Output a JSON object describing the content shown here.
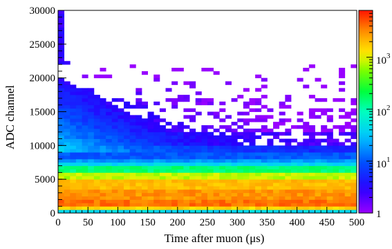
{
  "chart_data": {
    "type": "heatmap",
    "title": "",
    "xlabel": "Time after muon (μs)",
    "ylabel": "ADC channel",
    "xlim": [
      0,
      500
    ],
    "ylim": [
      0,
      30000
    ],
    "x_ticks": [
      "0",
      "50",
      "100",
      "150",
      "200",
      "250",
      "300",
      "350",
      "400",
      "450",
      "500"
    ],
    "y_ticks": [
      "0",
      "5000",
      "10000",
      "15000",
      "20000",
      "25000",
      "30000"
    ],
    "bin_width_x": 10,
    "bin_width_y": 500,
    "z_scale": "log",
    "z_range": [
      1,
      8000
    ],
    "colorbar": {
      "placement": "right",
      "labels": [
        {
          "base": "1",
          "exp": "",
          "value": 1
        },
        {
          "base": "10",
          "exp": "1",
          "value": 10
        },
        {
          "base": "10",
          "exp": "2",
          "value": 100
        },
        {
          "base": "10",
          "exp": "3",
          "value": 1000
        }
      ]
    },
    "intensity_profile_by_adc": [
      {
        "adc": [
          0,
          500
        ],
        "counts": 40
      },
      {
        "adc": [
          500,
          1000
        ],
        "counts": 1500
      },
      {
        "adc": [
          1000,
          2000
        ],
        "counts": 4000
      },
      {
        "adc": [
          2000,
          3500
        ],
        "counts": 3000
      },
      {
        "adc": [
          3500,
          5000
        ],
        "counts": 2000
      },
      {
        "adc": [
          5000,
          6000
        ],
        "counts": 800
      },
      {
        "adc": [
          6000,
          7000
        ],
        "counts": 150
      },
      {
        "adc": [
          7000,
          7500
        ],
        "counts": 40
      },
      {
        "adc": [
          7500,
          8000
        ],
        "counts": 20
      },
      {
        "adc": [
          8000,
          9000
        ],
        "counts": 10
      },
      {
        "adc": [
          9000,
          10000
        ],
        "counts": 5
      },
      {
        "adc": [
          10000,
          12000
        ],
        "counts": 2
      },
      {
        "adc": [
          12000,
          20000
        ],
        "counts": 1
      },
      {
        "adc": [
          20000,
          30000
        ],
        "counts": 0
      }
    ]
  }
}
